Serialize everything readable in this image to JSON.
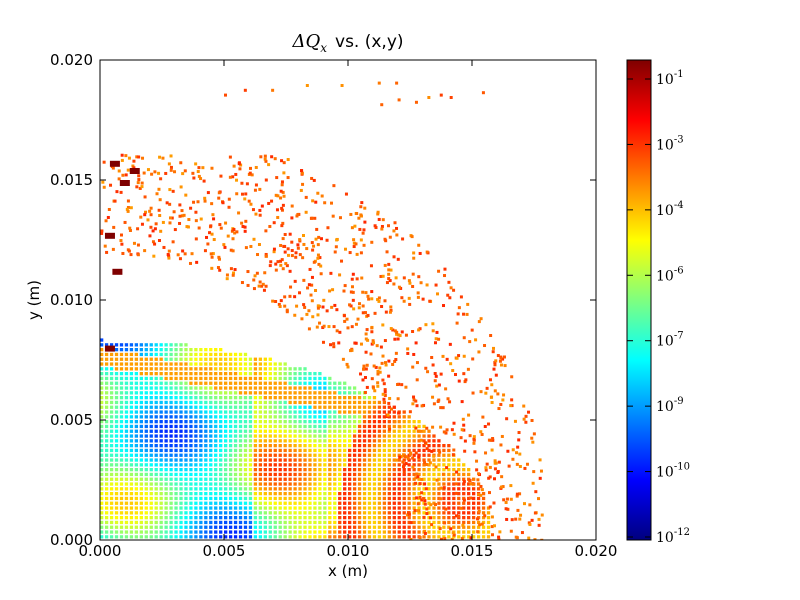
{
  "chart_data": {
    "type": "heatmap",
    "title": {
      "main": "ΔQ",
      "subscript": "x",
      "suffix": "vs. (x,y)"
    },
    "xlabel": "x (m)",
    "ylabel": "y (m)",
    "xlim": [
      0.0,
      0.02
    ],
    "ylim": [
      0.0,
      0.02
    ],
    "x_ticks": [
      "0.000",
      "0.005",
      "0.010",
      "0.015",
      "0.020"
    ],
    "y_ticks": [
      "0.000",
      "0.005",
      "0.010",
      "0.015",
      "0.020"
    ],
    "grid": false,
    "colorscale": "jet",
    "colorbar": {
      "scale": "log",
      "ticks": [
        {
          "base": "10",
          "exp": "-1"
        },
        {
          "base": "10",
          "exp": "-3"
        },
        {
          "base": "10",
          "exp": "-4"
        },
        {
          "base": "10",
          "exp": "-6"
        },
        {
          "base": "10",
          "exp": "-7"
        },
        {
          "base": "10",
          "exp": "-9"
        },
        {
          "base": "10",
          "exp": "-10"
        },
        {
          "base": "10",
          "exp": "-12"
        }
      ],
      "colors": [
        "#7f0000",
        "#ff0000",
        "#ff7f00",
        "#ffff00",
        "#7fff7f",
        "#00ffff",
        "#007fff",
        "#0000ff",
        "#00007f"
      ]
    },
    "regions": [
      {
        "label": "dense low-amplitude core (green/cyan)",
        "x": [
          0.0,
          0.0105
        ],
        "y": [
          0.0,
          0.0105
        ],
        "level": "1e-7"
      },
      {
        "label": "resonance band",
        "x": [
          0.0,
          0.016
        ],
        "y": [
          0.0,
          0.008
        ],
        "level": "1e-4"
      },
      {
        "label": "outer lobe (orange)",
        "x": [
          0.0095,
          0.016
        ],
        "y": [
          0.0,
          0.0065
        ],
        "level": "1e-3"
      },
      {
        "label": "scattered halo (orange)",
        "x": [
          0.0,
          0.0175
        ],
        "y": [
          0.0,
          0.016
        ],
        "level": "1e-3"
      },
      {
        "label": "upper edge spots (dark red)",
        "x": [
          0.0,
          0.0025
        ],
        "y": [
          0.0075,
          0.016
        ],
        "level": "1e-1"
      },
      {
        "label": "isolated far points",
        "x": [
          0.005,
          0.016
        ],
        "y": [
          0.018,
          0.0195
        ],
        "level": "1e-3"
      }
    ]
  }
}
